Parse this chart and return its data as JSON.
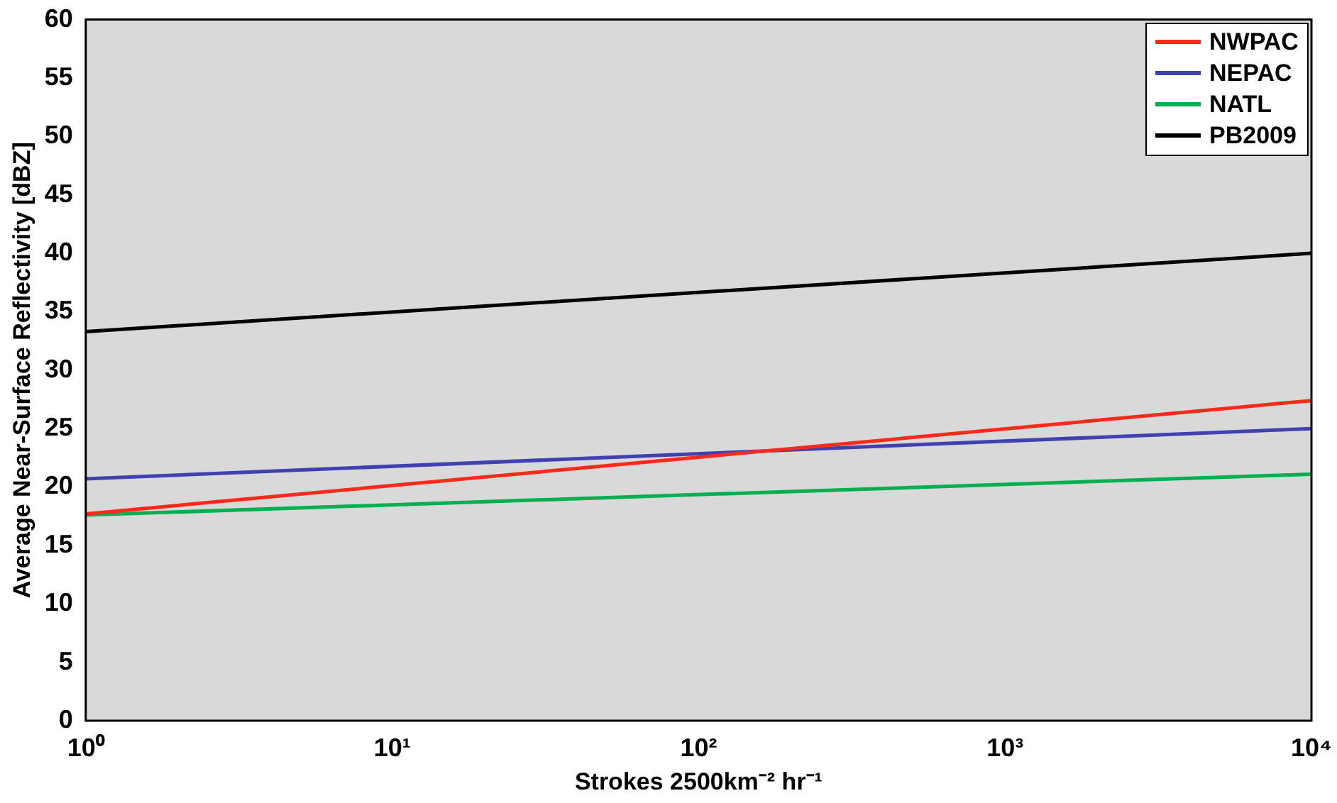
{
  "chart_data": {
    "type": "line",
    "xlabel": "Strokes 2500km⁻² hr⁻¹",
    "ylabel": "Average Near-Surface Reflectivity [dBZ]",
    "x": [
      1,
      10000
    ],
    "series": [
      {
        "name": "NWPAC",
        "color": "#ff2a1a",
        "values": [
          17.7,
          27.4
        ]
      },
      {
        "name": "NEPAC",
        "color": "#4040b0",
        "values": [
          20.7,
          25.0
        ]
      },
      {
        "name": "NATL",
        "color": "#00b050",
        "values": [
          17.6,
          21.1
        ]
      },
      {
        "name": "PB2009",
        "color": "#000000",
        "values": [
          33.3,
          40.0
        ]
      }
    ],
    "log": "x",
    "xlim": [
      1,
      10000
    ],
    "xticks": [
      {
        "value": 1,
        "label": "10⁰"
      },
      {
        "value": 10,
        "label": "10¹"
      },
      {
        "value": 100,
        "label": "10²"
      },
      {
        "value": 1000,
        "label": "10³"
      },
      {
        "value": 10000,
        "label": "10⁴"
      }
    ],
    "ylim": [
      0,
      60
    ],
    "yticks": [
      0,
      5,
      10,
      15,
      20,
      25,
      30,
      35,
      40,
      45,
      50,
      55,
      60
    ],
    "grid": false,
    "legend": "top right",
    "marker": "none",
    "line_style": "solid"
  }
}
